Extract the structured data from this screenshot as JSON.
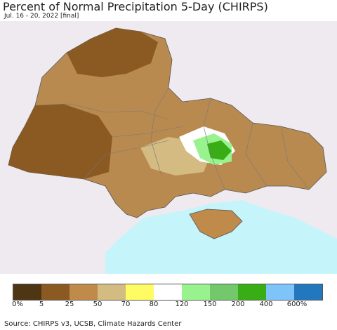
{
  "title": "Percent of Normal Precipitation 5-Day (CHIRPS)",
  "subtitle": "Jul. 16 - 20, 2022 [final]",
  "source": "Source: CHIRPS v3, UCSB, Climate Hazards Center",
  "colors": {
    "sea": "#c6f4fb",
    "outside": "#eeeaf0",
    "borders": "#777777"
  },
  "legend": {
    "colors": [
      "#4e3614",
      "#8b5a22",
      "#c08a4a",
      "#d3bb82",
      "#fffb63",
      "#ffffff",
      "#98f38f",
      "#73c86c",
      "#38ad16",
      "#7ec4f8",
      "#2377bd"
    ],
    "labels": [
      "0%",
      "5",
      "25",
      "50",
      "70",
      "80",
      "120",
      "150",
      "200",
      "400",
      "600%"
    ]
  }
}
